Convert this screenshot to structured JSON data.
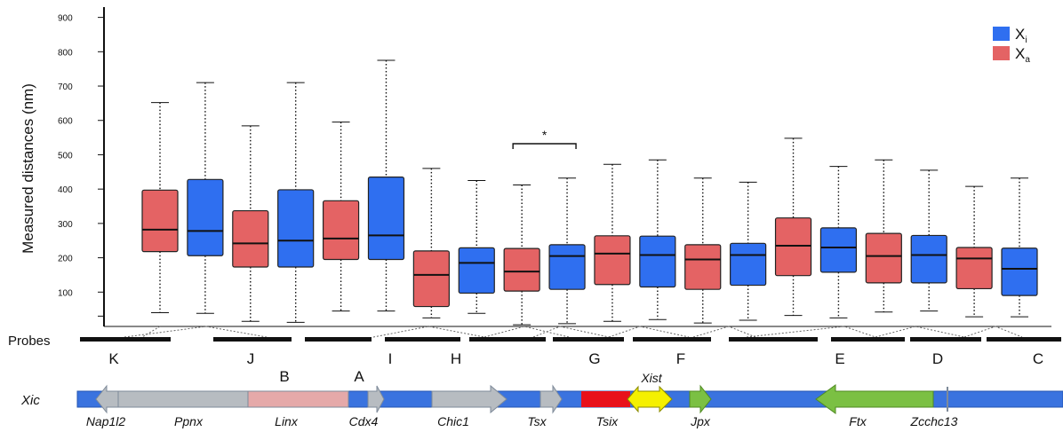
{
  "chart_data": {
    "type": "box",
    "ylabel": "Measured distances (nm)",
    "yticks": [
      100,
      200,
      300,
      400,
      500,
      600,
      700,
      800,
      900
    ],
    "ylim": [
      0,
      930
    ],
    "grid": false,
    "legend_position": "top-right",
    "legend": [
      {
        "key": "xi",
        "label": "X",
        "sub": "i",
        "color": "#2f6ff0"
      },
      {
        "key": "xa",
        "label": "X",
        "sub": "a",
        "color": "#e46364"
      }
    ],
    "boxes": [
      {
        "series": "xa",
        "min": 40,
        "q1": 218,
        "median": 282,
        "q3": 397,
        "max": 652
      },
      {
        "series": "xi",
        "min": 38,
        "q1": 206,
        "median": 278,
        "q3": 428,
        "max": 710
      },
      {
        "series": "xa",
        "min": 15,
        "q1": 173,
        "median": 242,
        "q3": 337,
        "max": 584
      },
      {
        "series": "xi",
        "min": 12,
        "q1": 173,
        "median": 250,
        "q3": 398,
        "max": 710
      },
      {
        "series": "xa",
        "min": 45,
        "q1": 195,
        "median": 256,
        "q3": 366,
        "max": 595
      },
      {
        "series": "xi",
        "min": 45,
        "q1": 195,
        "median": 265,
        "q3": 435,
        "max": 775
      },
      {
        "series": "xa",
        "min": 25,
        "q1": 58,
        "median": 150,
        "q3": 220,
        "max": 460
      },
      {
        "series": "xi",
        "min": 38,
        "q1": 97,
        "median": 185,
        "q3": 229,
        "max": 425
      },
      {
        "series": "xa",
        "min": 5,
        "q1": 103,
        "median": 160,
        "q3": 227,
        "max": 412
      },
      {
        "series": "xi",
        "min": 8,
        "q1": 108,
        "median": 205,
        "q3": 238,
        "max": 432
      },
      {
        "series": "xa",
        "min": 15,
        "q1": 122,
        "median": 212,
        "q3": 264,
        "max": 472
      },
      {
        "series": "xi",
        "min": 20,
        "q1": 115,
        "median": 208,
        "q3": 263,
        "max": 485
      },
      {
        "series": "xa",
        "min": 10,
        "q1": 108,
        "median": 195,
        "q3": 238,
        "max": 432
      },
      {
        "series": "xi",
        "min": 18,
        "q1": 120,
        "median": 208,
        "q3": 242,
        "max": 420
      },
      {
        "series": "xa",
        "min": 32,
        "q1": 148,
        "median": 235,
        "q3": 316,
        "max": 548
      },
      {
        "series": "xi",
        "min": 25,
        "q1": 158,
        "median": 230,
        "q3": 287,
        "max": 466
      },
      {
        "series": "xa",
        "min": 42,
        "q1": 127,
        "median": 205,
        "q3": 271,
        "max": 485
      },
      {
        "series": "xi",
        "min": 45,
        "q1": 127,
        "median": 208,
        "q3": 265,
        "max": 455
      },
      {
        "series": "xa",
        "min": 28,
        "q1": 110,
        "median": 198,
        "q3": 230,
        "max": 408
      },
      {
        "series": "xi",
        "min": 28,
        "q1": 90,
        "median": 168,
        "q3": 228,
        "max": 432
      }
    ],
    "significance": [
      {
        "from": 8,
        "to": 9,
        "label": "*"
      }
    ]
  },
  "probes": {
    "label": "Probes",
    "letters": [
      "K",
      "J",
      "B",
      "A",
      "I",
      "H",
      "G",
      "F",
      "E",
      "D",
      "C"
    ]
  },
  "xic": {
    "label": "Xic",
    "genes": [
      "Nap1l2",
      "Ppnx",
      "Linx",
      "Cdx4",
      "Chic1",
      "Tsx",
      "Tsix",
      "Xist",
      "Jpx",
      "Ftx",
      "Zcchc13"
    ]
  }
}
